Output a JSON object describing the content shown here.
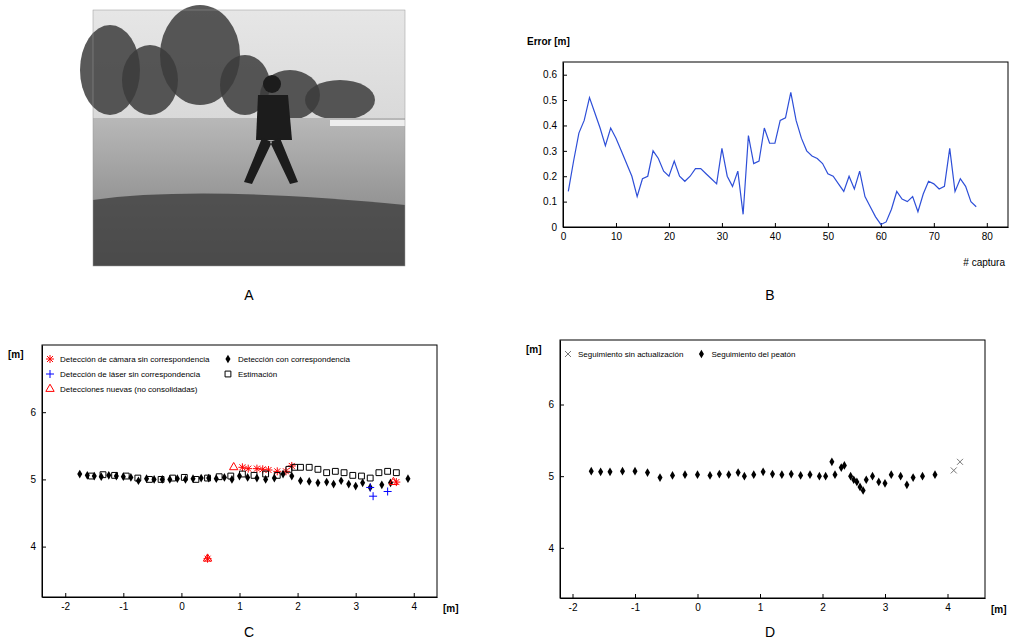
{
  "panel_labels": [
    "A",
    "B",
    "C",
    "D"
  ],
  "chart_data": [
    {
      "type": "line",
      "ylabel": "Error [m]",
      "xlabel": "# captura",
      "xlim": [
        0,
        84
      ],
      "xticks": [
        0,
        10,
        20,
        30,
        40,
        50,
        60,
        70,
        80
      ],
      "ylim": [
        0,
        0.65
      ],
      "yticks": [
        0,
        0.1,
        0.2,
        0.3,
        0.4,
        0.5,
        0.6
      ],
      "grid": false,
      "color": "#2e4fd8",
      "x": [
        1,
        2,
        3,
        4,
        5,
        6,
        7,
        8,
        9,
        10,
        11,
        12,
        13,
        14,
        15,
        16,
        17,
        18,
        19,
        20,
        21,
        22,
        23,
        24,
        25,
        26,
        27,
        28,
        29,
        30,
        31,
        32,
        33,
        34,
        35,
        36,
        37,
        38,
        39,
        40,
        41,
        42,
        43,
        44,
        45,
        46,
        47,
        48,
        49,
        50,
        51,
        52,
        53,
        54,
        55,
        56,
        57,
        58,
        59,
        60,
        61,
        62,
        63,
        64,
        65,
        66,
        67,
        68,
        69,
        70,
        71,
        72,
        73,
        74,
        75,
        76,
        77,
        78
      ],
      "values": [
        0.14,
        0.26,
        0.37,
        0.42,
        0.51,
        0.45,
        0.39,
        0.32,
        0.39,
        0.35,
        0.3,
        0.25,
        0.2,
        0.12,
        0.19,
        0.2,
        0.3,
        0.27,
        0.22,
        0.2,
        0.26,
        0.2,
        0.18,
        0.2,
        0.23,
        0.23,
        0.21,
        0.19,
        0.17,
        0.31,
        0.2,
        0.16,
        0.22,
        0.05,
        0.36,
        0.25,
        0.26,
        0.39,
        0.33,
        0.33,
        0.42,
        0.43,
        0.53,
        0.42,
        0.35,
        0.3,
        0.28,
        0.27,
        0.25,
        0.21,
        0.2,
        0.17,
        0.14,
        0.2,
        0.15,
        0.22,
        0.12,
        0.08,
        0.04,
        0.01,
        0.02,
        0.07,
        0.14,
        0.11,
        0.1,
        0.12,
        0.06,
        0.13,
        0.18,
        0.17,
        0.15,
        0.16,
        0.31,
        0.14,
        0.19,
        0.16,
        0.1,
        0.08
      ]
    },
    {
      "type": "scatter",
      "ylabel": "[m]",
      "xlabel": "[m]",
      "xlim": [
        -2.4,
        4.4
      ],
      "xticks": [
        -2,
        -1,
        0,
        1,
        2,
        3,
        4
      ],
      "ylim": [
        3.25,
        7
      ],
      "yticks": [
        4,
        5,
        6
      ],
      "grid": false,
      "legend": "top",
      "series": [
        {
          "name": "Detección de cámara sin correspondencia",
          "color": "#ff0000",
          "marker": "asterisk",
          "x": [
            0.45,
            1.05,
            1.15,
            1.3,
            1.4,
            1.5,
            1.65,
            1.8,
            1.9,
            3.7
          ],
          "values": [
            3.82,
            5.18,
            5.16,
            5.16,
            5.15,
            5.14,
            5.12,
            5.12,
            5.2,
            4.96
          ]
        },
        {
          "name": "Detección con correspondencia",
          "color": "#000000",
          "marker": "diamond",
          "x": [
            -1.75,
            -1.62,
            -1.5,
            -1.38,
            -1.25,
            -1.12,
            -1.0,
            -0.87,
            -0.74,
            -0.6,
            -0.47,
            -0.33,
            -0.2,
            -0.07,
            0.07,
            0.2,
            0.34,
            0.47,
            0.6,
            0.74,
            0.87,
            1.0,
            1.14,
            1.3,
            1.45,
            1.6,
            1.75,
            1.9,
            2.05,
            2.2,
            2.35,
            2.5,
            2.62,
            2.75,
            2.88,
            3.0,
            3.12,
            3.25,
            3.45,
            3.6,
            3.9
          ],
          "values": [
            5.08,
            5.06,
            5.05,
            5.04,
            5.06,
            5.05,
            5.04,
            5.03,
            4.98,
            5.01,
            5.0,
            5.0,
            5.0,
            5.01,
            5.0,
            5.01,
            5.02,
            5.02,
            5.01,
            5.03,
            5.0,
            5.05,
            5.03,
            5.02,
            5.0,
            5.02,
            5.08,
            5.05,
            4.98,
            4.97,
            4.95,
            4.96,
            4.93,
            4.98,
            4.93,
            4.9,
            4.95,
            4.88,
            4.92,
            4.95,
            5.01
          ]
        },
        {
          "name": "Detección de láser sin correspondencia",
          "color": "#0000ff",
          "marker": "plus",
          "x": [
            3.25,
            3.3,
            3.55
          ],
          "values": [
            4.88,
            4.75,
            4.82
          ]
        },
        {
          "name": "Estimación",
          "color": "#000000",
          "marker": "square",
          "x": [
            -1.55,
            -1.35,
            -1.15,
            -0.95,
            -0.75,
            -0.55,
            -0.35,
            -0.15,
            0.05,
            0.25,
            0.45,
            0.65,
            0.85,
            1.05,
            1.25,
            1.45,
            1.65,
            1.85,
            1.95,
            2.05,
            2.2,
            2.35,
            2.5,
            2.65,
            2.8,
            2.95,
            3.1,
            3.25,
            3.4,
            3.55,
            3.7
          ],
          "values": [
            5.05,
            5.07,
            5.06,
            5.05,
            5.02,
            5.0,
            5.0,
            5.02,
            5.03,
            5.0,
            5.02,
            5.04,
            5.05,
            5.08,
            5.06,
            5.08,
            5.06,
            5.15,
            5.18,
            5.18,
            5.18,
            5.15,
            5.1,
            5.12,
            5.1,
            5.06,
            5.05,
            5.02,
            5.1,
            5.12,
            5.1
          ]
        },
        {
          "name": "Detecciones nuevas (no consolidadas)",
          "color": "#ff0000",
          "marker": "triangle",
          "x": [
            0.9,
            0.45,
            3.65
          ],
          "values": [
            5.18,
            3.82,
            4.96
          ]
        }
      ]
    },
    {
      "type": "scatter",
      "ylabel": "[m]",
      "xlabel": "[m]",
      "xlim": [
        -2.2,
        4.6
      ],
      "xticks": [
        -2,
        -1,
        0,
        1,
        2,
        3,
        4
      ],
      "ylim": [
        3.3,
        6.9
      ],
      "yticks": [
        4,
        5,
        6
      ],
      "grid": false,
      "legend": "top",
      "series": [
        {
          "name": "Seguimiento sin actualización",
          "color": "#777777",
          "marker": "x",
          "x": [
            4.1,
            4.2
          ],
          "values": [
            5.08,
            5.2
          ]
        },
        {
          "name": "Seguimiento del peatón",
          "color": "#000000",
          "marker": "diamond",
          "x": [
            -1.7,
            -1.55,
            -1.4,
            -1.2,
            -1.0,
            -0.8,
            -0.6,
            -0.4,
            -0.2,
            0.0,
            0.2,
            0.35,
            0.5,
            0.65,
            0.75,
            0.9,
            1.05,
            1.2,
            1.35,
            1.5,
            1.65,
            1.8,
            1.95,
            2.05,
            2.15,
            2.2,
            2.3,
            2.35,
            2.45,
            2.5,
            2.55,
            2.6,
            2.65,
            2.7,
            2.8,
            2.9,
            3.0,
            3.1,
            3.25,
            3.35,
            3.45,
            3.6,
            3.8
          ],
          "values": [
            5.07,
            5.06,
            5.06,
            5.07,
            5.07,
            5.05,
            4.98,
            5.01,
            5.02,
            5.02,
            5.01,
            5.03,
            5.02,
            5.05,
            5.0,
            5.02,
            5.06,
            5.03,
            5.02,
            5.03,
            5.01,
            5.02,
            5.0,
            5.0,
            5.2,
            5.02,
            5.12,
            5.15,
            5.0,
            4.95,
            4.92,
            4.85,
            4.8,
            4.95,
            5.0,
            4.92,
            4.9,
            5.02,
            5.0,
            4.88,
            4.98,
            5.0,
            5.02
          ]
        }
      ]
    }
  ]
}
